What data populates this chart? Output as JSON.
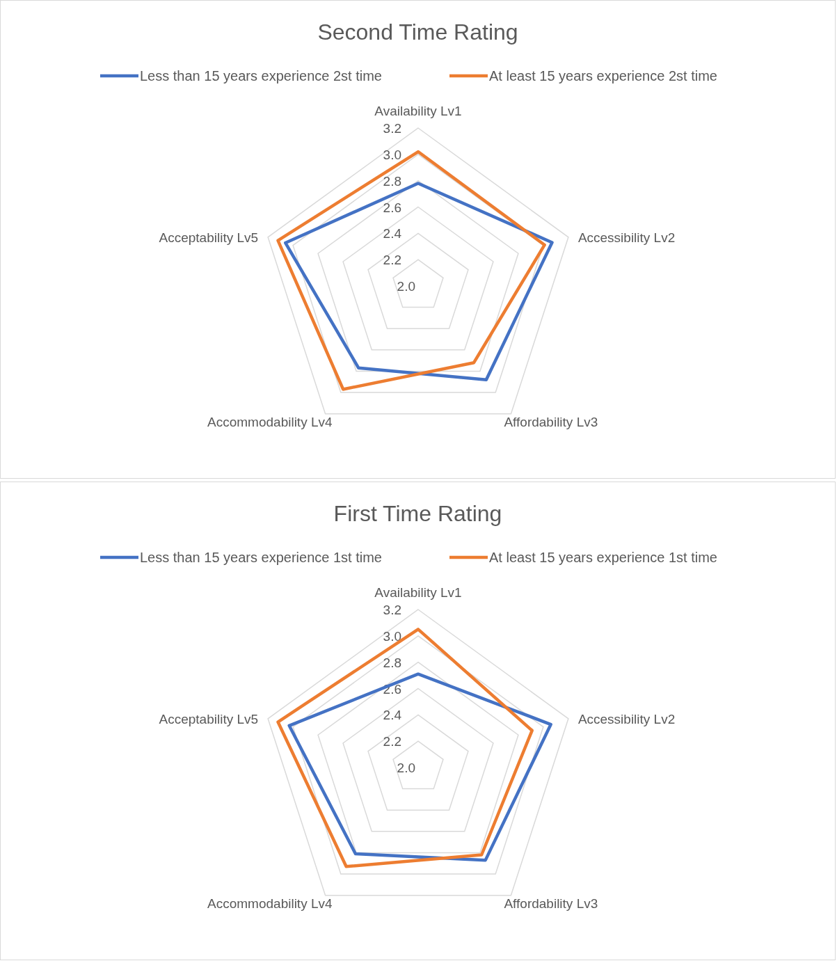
{
  "chart_data": [
    {
      "type": "radar",
      "title": "Second Time Rating",
      "categories": [
        "Availability Lv1",
        "Accessibility Lv2",
        "Affordability Lv3",
        "Accommodability Lv4",
        "Acceptability Lv5"
      ],
      "series": [
        {
          "name": "Less than 15 years experience 2st time",
          "color": "#4472c4",
          "values": [
            2.78,
            3.07,
            2.88,
            2.77,
            3.06
          ]
        },
        {
          "name": "At least 15 years experience 2st time",
          "color": "#ed7d31",
          "values": [
            3.02,
            3.01,
            2.72,
            2.97,
            3.12
          ]
        }
      ],
      "ylim": [
        2.0,
        3.2
      ],
      "yticks": [
        {
          "value": 2,
          "label": "2.0"
        },
        {
          "value": 2.2,
          "label": "2.2"
        },
        {
          "value": 2.4,
          "label": "2.4"
        },
        {
          "value": 2.6,
          "label": "2.6"
        },
        {
          "value": 2.8,
          "label": "2.8"
        },
        {
          "value": 3,
          "label": "3.0"
        },
        {
          "value": 3.2,
          "label": "3.2"
        }
      ],
      "grid": true,
      "legend": "top"
    },
    {
      "type": "radar",
      "title": "First Time Rating",
      "categories": [
        "Availability Lv1",
        "Accessibility Lv2",
        "Affordability Lv3",
        "Accommodability Lv4",
        "Acceptability Lv5"
      ],
      "series": [
        {
          "name": "Less than 15 years experience 1st time",
          "color": "#4472c4",
          "values": [
            2.71,
            3.06,
            2.87,
            2.81,
            3.03
          ]
        },
        {
          "name": "At least 15 years experience 1st time",
          "color": "#ed7d31",
          "values": [
            3.05,
            2.91,
            2.82,
            2.93,
            3.12
          ]
        }
      ],
      "ylim": [
        2.0,
        3.2
      ],
      "yticks": [
        {
          "value": 2,
          "label": "2.0"
        },
        {
          "value": 2.2,
          "label": "2.2"
        },
        {
          "value": 2.4,
          "label": "2.4"
        },
        {
          "value": 2.6,
          "label": "2.6"
        },
        {
          "value": 2.8,
          "label": "2.8"
        },
        {
          "value": 3,
          "label": "3.0"
        },
        {
          "value": 3.2,
          "label": "3.2"
        }
      ],
      "grid": true,
      "legend": "top"
    }
  ]
}
